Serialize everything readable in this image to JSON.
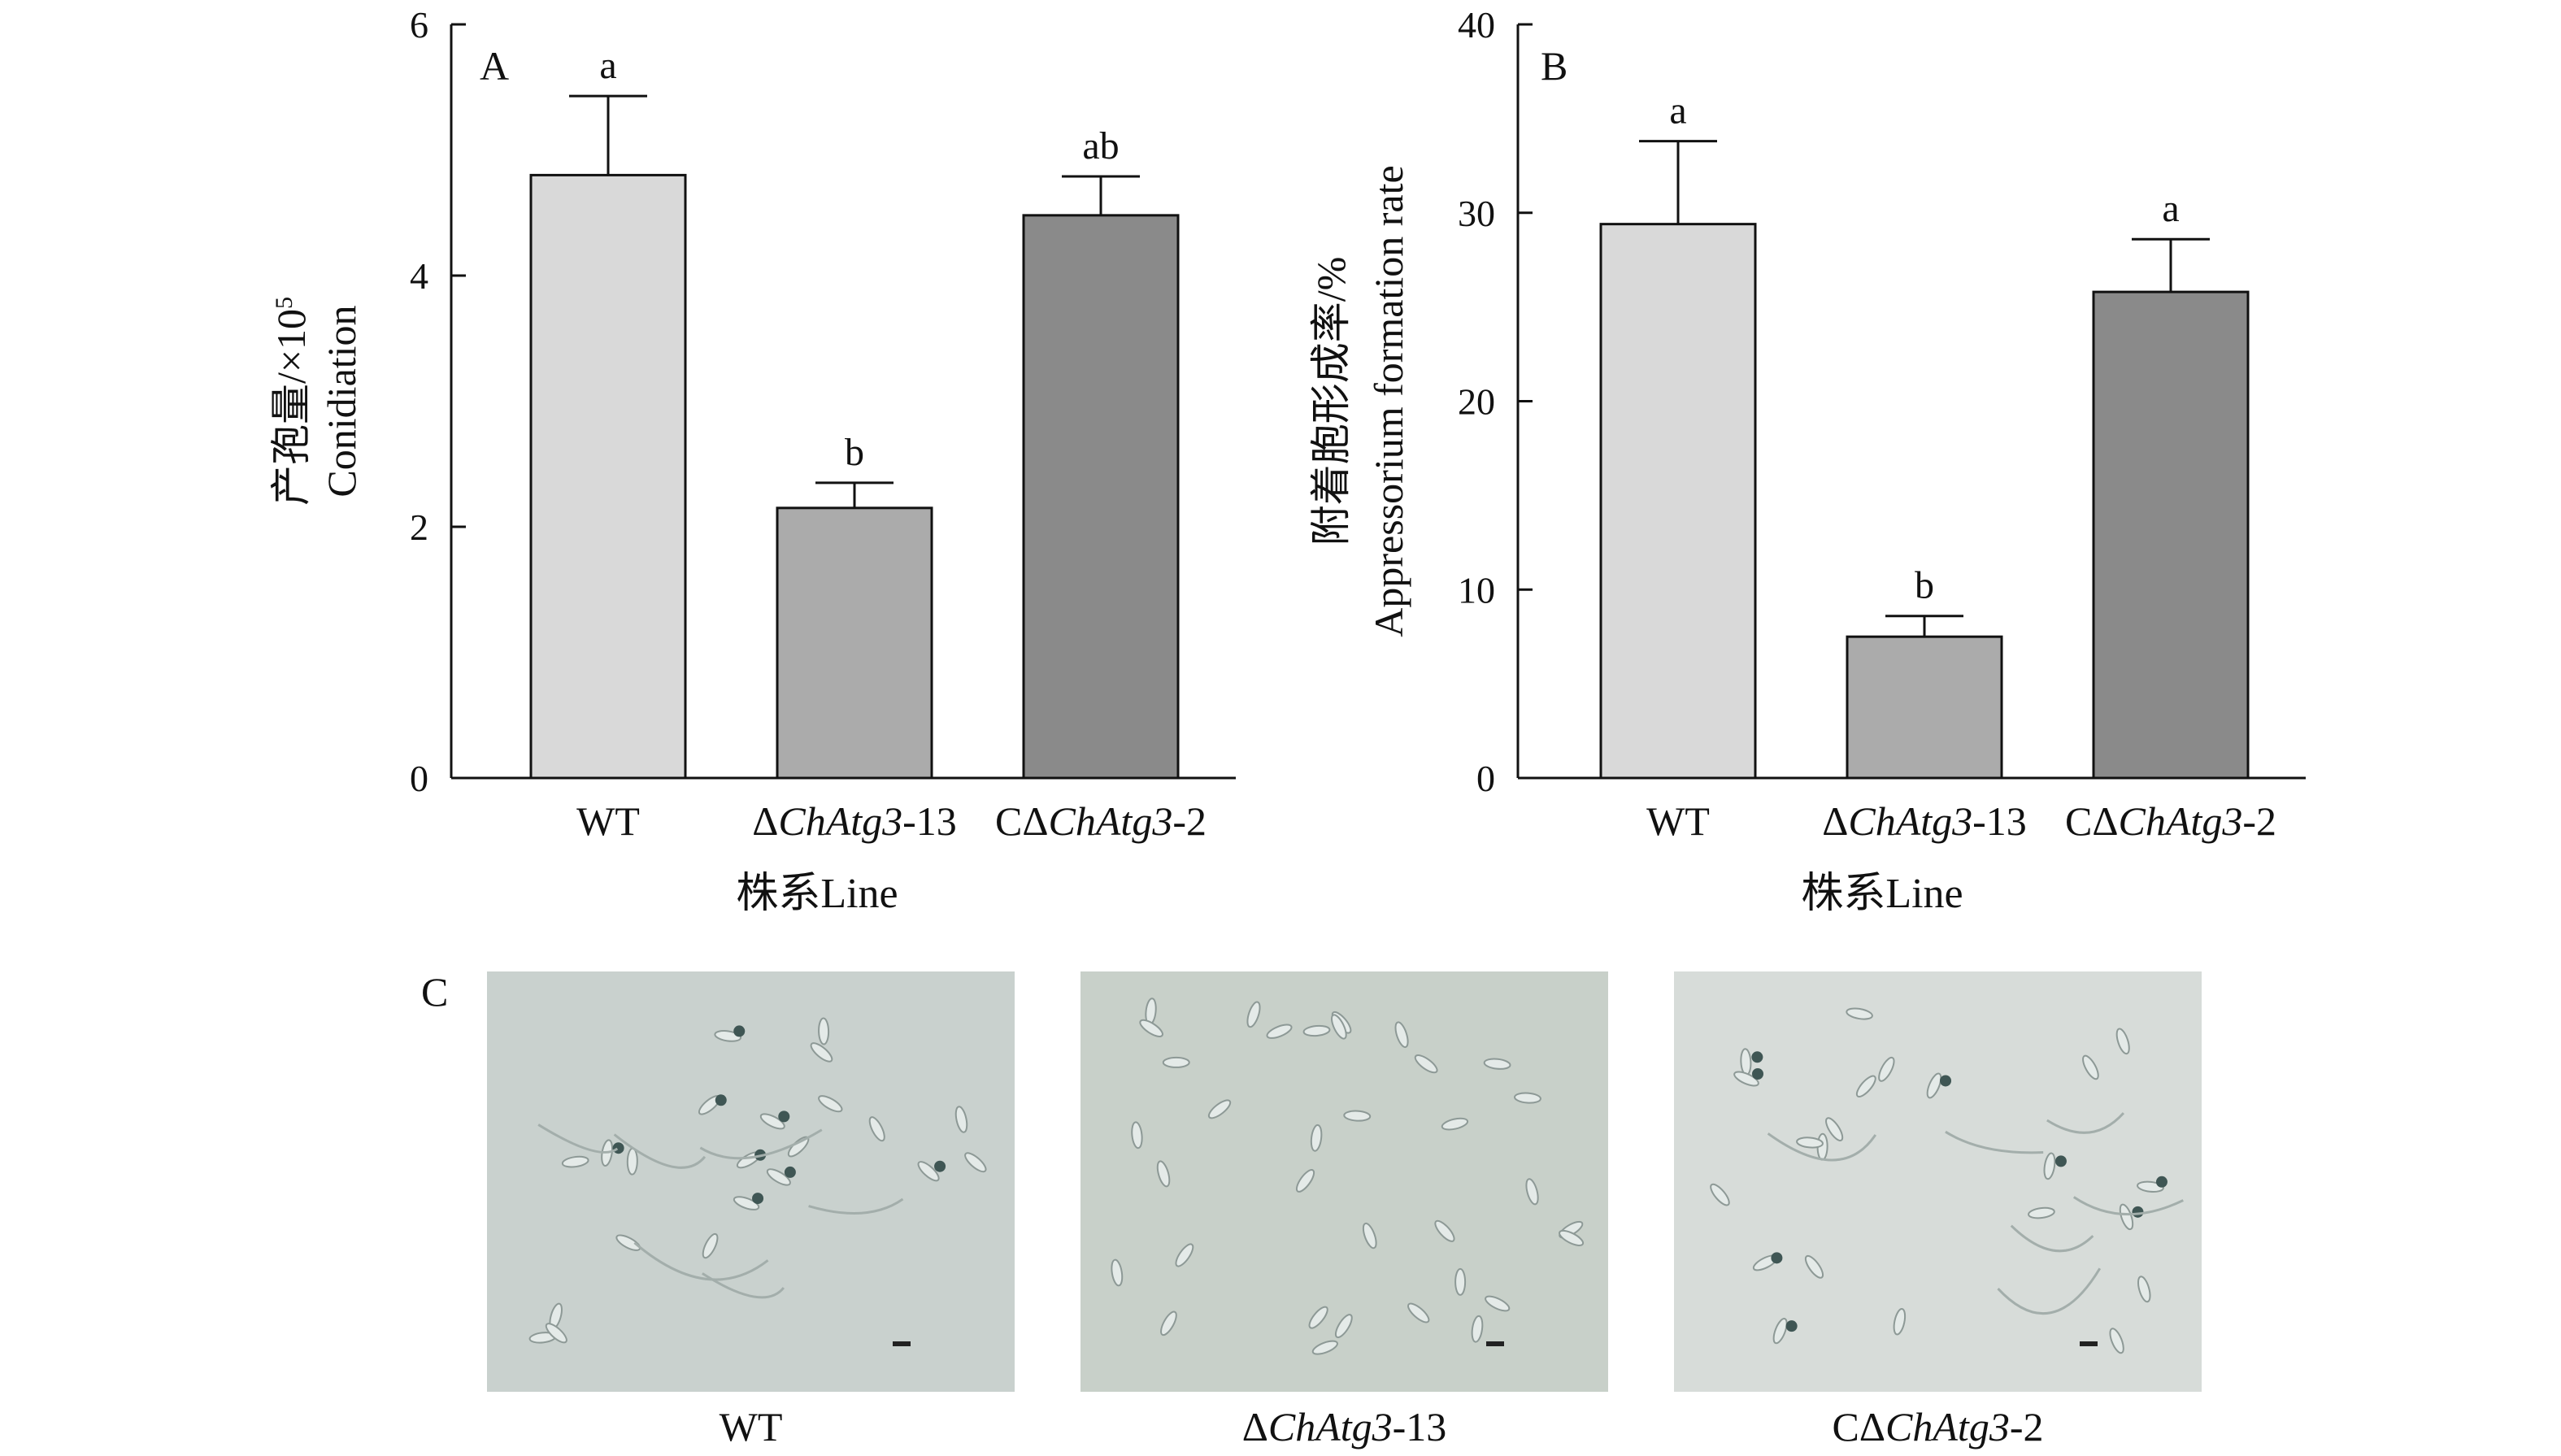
{
  "chart_data": [
    {
      "type": "bar",
      "panel_label": "A",
      "categories": [
        "WT",
        "ΔChAtg3-13",
        "CΔChAtg3-2"
      ],
      "category_parts": [
        {
          "pre": "WT",
          "italic": "",
          "post": ""
        },
        {
          "pre": "Δ",
          "italic": "ChAtg3",
          "post": "-13"
        },
        {
          "pre": "CΔ",
          "italic": "ChAtg3",
          "post": "-2"
        }
      ],
      "values": [
        4.8,
        2.15,
        4.48
      ],
      "errors": [
        0.63,
        0.2,
        0.31
      ],
      "significance": [
        "a",
        "b",
        "ab"
      ],
      "colors": [
        "#d9d9d9",
        "#ababab",
        "#8a8a8a"
      ],
      "ylabel_lines": [
        "产孢量/×10",
        "Conidiation"
      ],
      "ylabel_superscript": "5",
      "xlabel": "株系Line",
      "ylim": [
        0,
        6
      ],
      "yticks": [
        0,
        2,
        4,
        6
      ]
    },
    {
      "type": "bar",
      "panel_label": "B",
      "categories": [
        "WT",
        "ΔChAtg3-13",
        "CΔChAtg3-2"
      ],
      "category_parts": [
        {
          "pre": "WT",
          "italic": "",
          "post": ""
        },
        {
          "pre": "Δ",
          "italic": "ChAtg3",
          "post": "-13"
        },
        {
          "pre": "CΔ",
          "italic": "ChAtg3",
          "post": "-2"
        }
      ],
      "values": [
        29.4,
        7.5,
        25.8
      ],
      "errors": [
        4.4,
        1.1,
        2.8
      ],
      "significance": [
        "a",
        "b",
        "a"
      ],
      "colors": [
        "#d9d9d9",
        "#ababab",
        "#8a8a8a"
      ],
      "ylabel_lines": [
        "附着胞形成率/%",
        "Appressorium formation rate"
      ],
      "ylabel_superscript": "",
      "xlabel": "株系Line",
      "ylim": [
        0,
        40
      ],
      "yticks": [
        0,
        10,
        20,
        30,
        40
      ]
    }
  ],
  "micrographs": {
    "panel_label": "C",
    "items": [
      {
        "label_parts": {
          "pre": "WT",
          "italic": "",
          "post": ""
        },
        "bg": "#c9d1ce"
      },
      {
        "label_parts": {
          "pre": "Δ",
          "italic": "ChAtg3",
          "post": "-13"
        },
        "bg": "#c8d0c9"
      },
      {
        "label_parts": {
          "pre": "CΔ",
          "italic": "ChAtg3",
          "post": "-2"
        },
        "bg": "#d7dcd9"
      }
    ]
  }
}
